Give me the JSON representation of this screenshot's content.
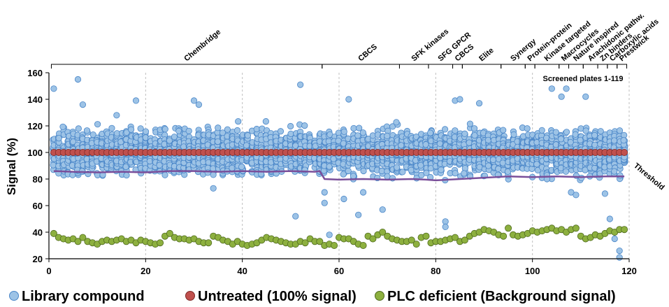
{
  "chart_data": {
    "type": "scatter",
    "title": "",
    "xlabel": "",
    "ylabel": "Signal (%)",
    "xlim": [
      0,
      120
    ],
    "ylim": [
      20,
      160
    ],
    "x_ticks": [
      0,
      20,
      40,
      60,
      80,
      100,
      120
    ],
    "y_ticks": [
      20,
      40,
      60,
      80,
      100,
      120,
      140,
      160
    ],
    "grid": {
      "vertical_dashed": true
    },
    "annotation": "Screened plates 1-119",
    "threshold_label": "Threshold",
    "legend_position": "bottom",
    "legend": [
      {
        "name": "Library compound",
        "color": "#9DC3E6",
        "edge": "#4A86C8"
      },
      {
        "name": "Untreated (100% signal)",
        "color": "#C0504D",
        "edge": "#7F2A28"
      },
      {
        "name": "PLC deficient (Background signal)",
        "color": "#8DB03F",
        "edge": "#4F6A1E"
      }
    ],
    "library_groups": [
      {
        "name": "Chembridge",
        "start": 1,
        "end": 56
      },
      {
        "name": "CBCS",
        "start": 57,
        "end": 72
      },
      {
        "name": "SFK kinases",
        "start": 73,
        "end": 78
      },
      {
        "name": "SFG GPCR",
        "start": 79,
        "end": 83
      },
      {
        "name": "CBCS",
        "start": 84,
        "end": 85
      },
      {
        "name": "Elite",
        "start": 86,
        "end": 93
      },
      {
        "name": "Synergy",
        "start": 94,
        "end": 98
      },
      {
        "name": "Protein-protein",
        "start": 99,
        "end": 100
      },
      {
        "name": "Kinase targeted",
        "start": 101,
        "end": 105
      },
      {
        "name": "Macrocycles",
        "start": 106,
        "end": 107
      },
      {
        "name": "Nature inspired",
        "start": 108,
        "end": 110
      },
      {
        "name": "Arachidonic pathw.",
        "start": 111,
        "end": 113
      },
      {
        "name": "Zn binders",
        "start": 114,
        "end": 115
      },
      {
        "name": "Carboxylic acids",
        "start": 116,
        "end": 117
      },
      {
        "name": "Prestwick",
        "start": 118,
        "end": 119
      }
    ],
    "untreated": {
      "value": 100,
      "plates": [
        1,
        119
      ]
    },
    "threshold_series": [
      [
        1,
        86
      ],
      [
        5,
        85.5
      ],
      [
        10,
        85
      ],
      [
        15,
        85.5
      ],
      [
        20,
        85
      ],
      [
        25,
        86
      ],
      [
        30,
        86
      ],
      [
        35,
        85.5
      ],
      [
        40,
        86
      ],
      [
        45,
        85.5
      ],
      [
        50,
        86
      ],
      [
        55,
        85.5
      ],
      [
        56,
        86
      ],
      [
        57,
        80
      ],
      [
        60,
        79.5
      ],
      [
        65,
        80
      ],
      [
        70,
        79.5
      ],
      [
        75,
        80
      ],
      [
        78,
        79.5
      ],
      [
        80,
        79
      ],
      [
        85,
        80
      ],
      [
        90,
        81
      ],
      [
        95,
        82
      ],
      [
        100,
        81.5
      ],
      [
        105,
        82
      ],
      [
        110,
        81.5
      ],
      [
        115,
        82
      ],
      [
        119,
        82
      ]
    ],
    "background": [
      [
        1,
        39
      ],
      [
        2,
        36
      ],
      [
        3,
        35
      ],
      [
        4,
        34
      ],
      [
        5,
        35
      ],
      [
        6,
        33
      ],
      [
        7,
        36
      ],
      [
        8,
        33
      ],
      [
        9,
        32
      ],
      [
        10,
        31
      ],
      [
        11,
        33
      ],
      [
        12,
        34
      ],
      [
        13,
        33
      ],
      [
        14,
        34
      ],
      [
        15,
        35
      ],
      [
        16,
        33
      ],
      [
        17,
        34
      ],
      [
        18,
        32
      ],
      [
        19,
        34
      ],
      [
        20,
        33
      ],
      [
        21,
        32
      ],
      [
        22,
        31
      ],
      [
        23,
        32
      ],
      [
        24,
        37
      ],
      [
        25,
        39
      ],
      [
        26,
        36
      ],
      [
        27,
        35
      ],
      [
        28,
        35
      ],
      [
        29,
        34
      ],
      [
        30,
        35
      ],
      [
        31,
        33
      ],
      [
        32,
        32
      ],
      [
        33,
        32
      ],
      [
        34,
        37
      ],
      [
        35,
        36
      ],
      [
        36,
        34
      ],
      [
        37,
        33
      ],
      [
        38,
        31
      ],
      [
        39,
        33
      ],
      [
        40,
        31
      ],
      [
        41,
        30
      ],
      [
        42,
        31
      ],
      [
        43,
        32
      ],
      [
        44,
        34
      ],
      [
        45,
        36
      ],
      [
        46,
        35
      ],
      [
        47,
        34
      ],
      [
        48,
        33
      ],
      [
        49,
        32
      ],
      [
        50,
        31
      ],
      [
        51,
        31
      ],
      [
        52,
        33
      ],
      [
        53,
        32
      ],
      [
        54,
        35
      ],
      [
        55,
        33
      ],
      [
        56,
        33
      ],
      [
        57,
        30
      ],
      [
        58,
        31
      ],
      [
        59,
        30
      ],
      [
        60,
        36
      ],
      [
        61,
        35
      ],
      [
        62,
        35
      ],
      [
        63,
        33
      ],
      [
        64,
        31
      ],
      [
        65,
        30
      ],
      [
        66,
        37
      ],
      [
        67,
        35
      ],
      [
        68,
        38
      ],
      [
        69,
        40
      ],
      [
        70,
        37
      ],
      [
        71,
        35
      ],
      [
        72,
        34
      ],
      [
        73,
        33
      ],
      [
        74,
        33
      ],
      [
        75,
        34
      ],
      [
        76,
        31
      ],
      [
        77,
        36
      ],
      [
        78,
        37
      ],
      [
        79,
        32
      ],
      [
        80,
        33
      ],
      [
        81,
        33
      ],
      [
        82,
        34
      ],
      [
        83,
        35
      ],
      [
        84,
        36
      ],
      [
        85,
        33
      ],
      [
        86,
        34
      ],
      [
        87,
        37
      ],
      [
        88,
        39
      ],
      [
        89,
        40
      ],
      [
        90,
        42
      ],
      [
        91,
        41
      ],
      [
        92,
        40
      ],
      [
        93,
        38
      ],
      [
        94,
        37
      ],
      [
        95,
        43
      ],
      [
        96,
        38
      ],
      [
        97,
        37
      ],
      [
        98,
        38
      ],
      [
        99,
        39
      ],
      [
        100,
        41
      ],
      [
        101,
        40
      ],
      [
        102,
        41
      ],
      [
        103,
        42
      ],
      [
        104,
        43
      ],
      [
        105,
        41
      ],
      [
        106,
        42
      ],
      [
        107,
        40
      ],
      [
        108,
        42
      ],
      [
        109,
        43
      ],
      [
        110,
        37
      ],
      [
        111,
        35
      ],
      [
        112,
        36
      ],
      [
        113,
        38
      ],
      [
        114,
        37
      ],
      [
        115,
        39
      ],
      [
        116,
        41
      ],
      [
        117,
        40
      ],
      [
        118,
        42
      ],
      [
        119,
        42
      ]
    ],
    "library_outliers": [
      [
        1,
        148
      ],
      [
        6,
        155
      ],
      [
        7,
        136
      ],
      [
        14,
        128
      ],
      [
        18,
        139
      ],
      [
        24,
        83
      ],
      [
        30,
        139
      ],
      [
        31,
        136
      ],
      [
        34,
        73
      ],
      [
        51,
        52
      ],
      [
        52,
        151
      ],
      [
        57,
        70
      ],
      [
        57,
        62
      ],
      [
        58,
        38
      ],
      [
        61,
        65
      ],
      [
        62,
        140
      ],
      [
        64,
        53
      ],
      [
        65,
        70
      ],
      [
        69,
        57
      ],
      [
        82,
        48
      ],
      [
        82,
        44
      ],
      [
        84,
        139
      ],
      [
        85,
        140
      ],
      [
        89,
        137
      ],
      [
        103,
        80
      ],
      [
        104,
        148
      ],
      [
        106,
        142
      ],
      [
        107,
        148
      ],
      [
        108,
        70
      ],
      [
        109,
        68
      ],
      [
        111,
        142
      ],
      [
        111,
        35
      ],
      [
        115,
        69
      ],
      [
        116,
        50
      ],
      [
        117,
        35
      ],
      [
        118,
        26
      ],
      [
        118,
        21
      ],
      [
        118,
        42
      ]
    ]
  }
}
